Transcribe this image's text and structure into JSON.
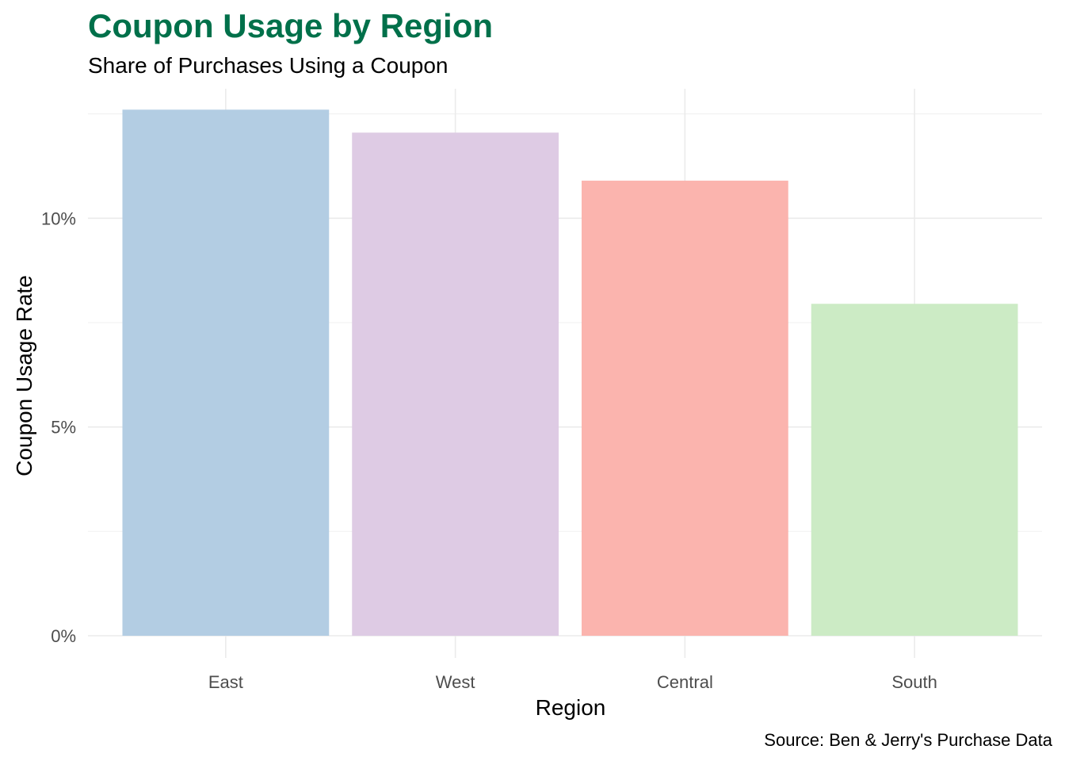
{
  "chart_data": {
    "type": "bar",
    "title": "Coupon Usage by Region",
    "subtitle": "Share of Purchases Using a Coupon",
    "xlabel": "Region",
    "ylabel": "Coupon Usage Rate",
    "caption": "Source: Ben & Jerry's Purchase Data",
    "categories": [
      "East",
      "West",
      "Central",
      "South"
    ],
    "values": [
      12.6,
      12.05,
      10.9,
      7.95
    ],
    "colors": [
      "#b3cde3",
      "#decbe4",
      "#fbb4ae",
      "#ccebc5"
    ],
    "ylim": [
      0,
      13.1
    ],
    "yticks": [
      0,
      5,
      10
    ],
    "ytick_labels": [
      "0%",
      "5%",
      "10%"
    ],
    "grid": true,
    "legend": "none",
    "title_color": "#00704a"
  }
}
